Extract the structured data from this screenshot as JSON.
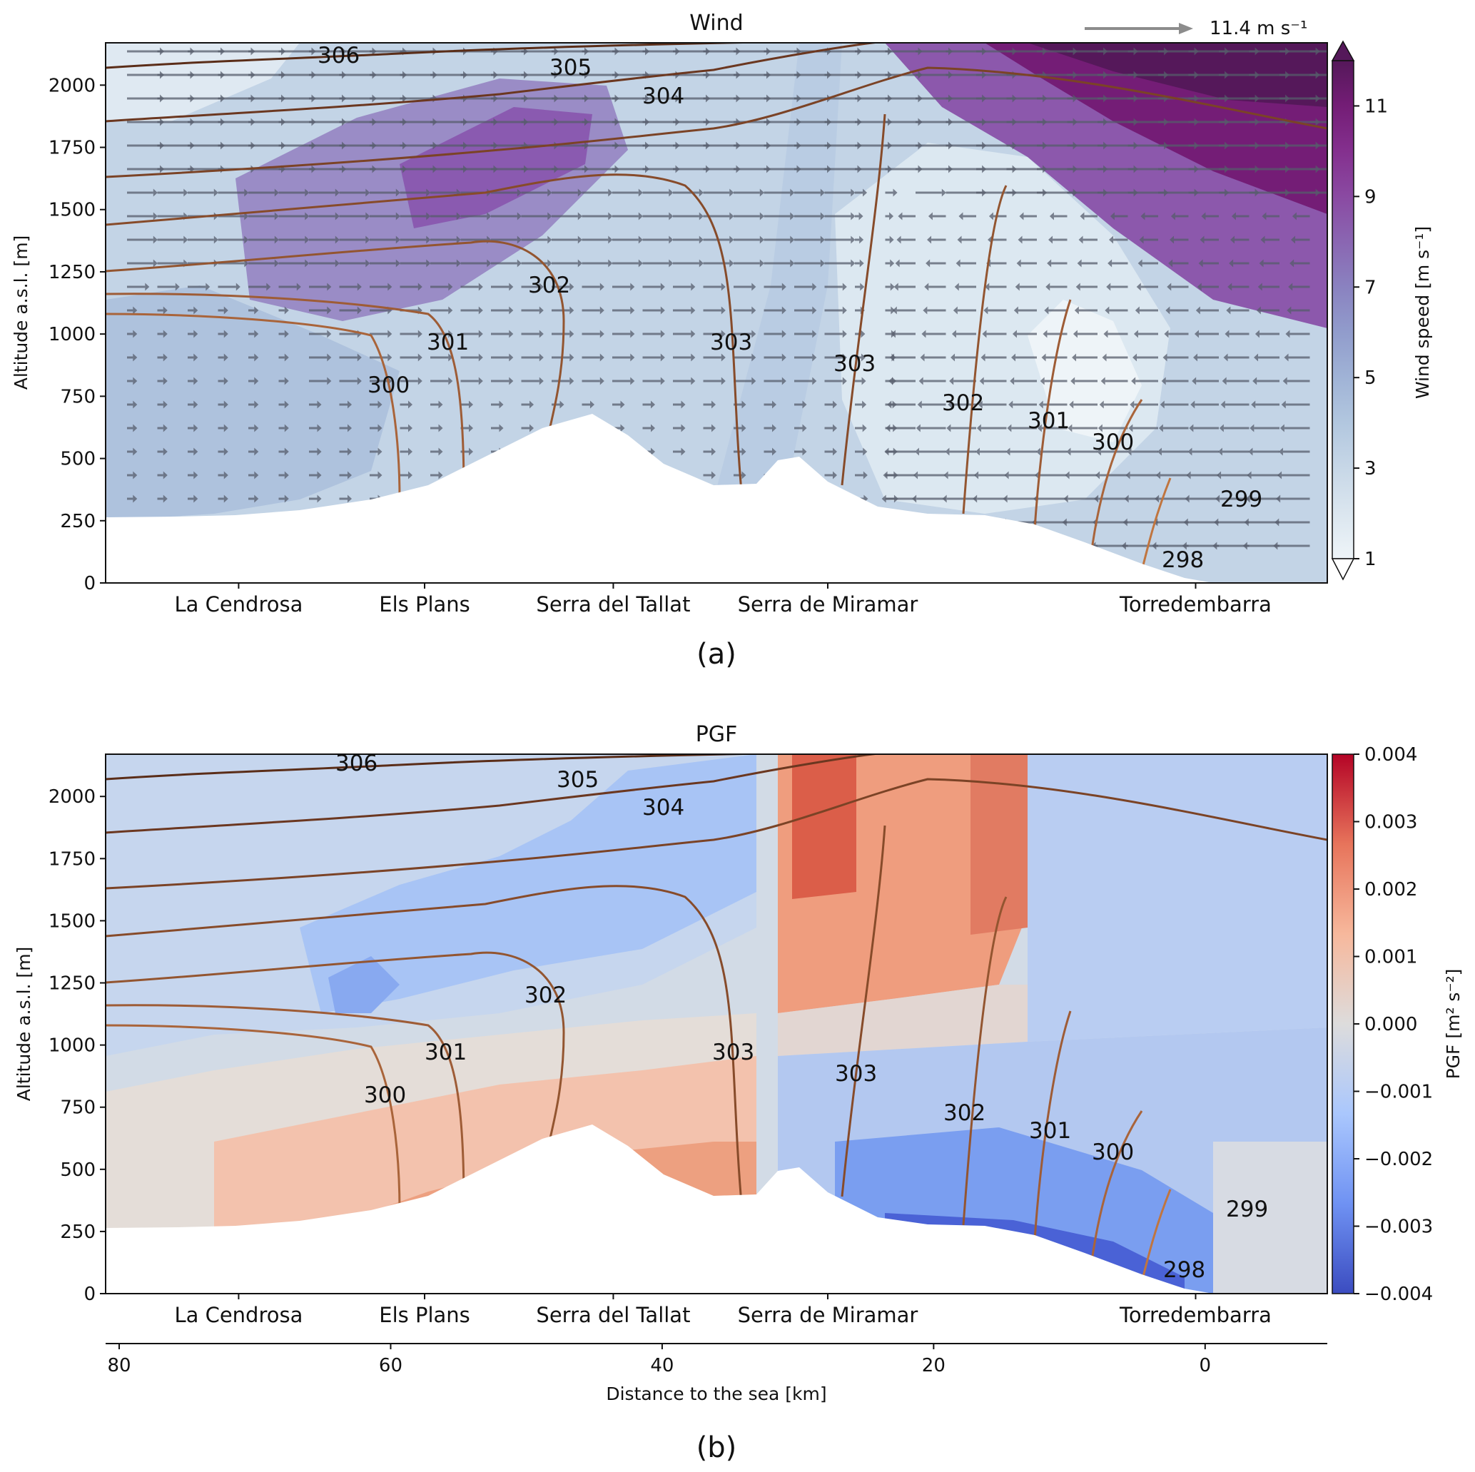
{
  "chart_data": [
    {
      "panel_label": "(a)",
      "type": "heatmap",
      "title": "Wind",
      "ylabel": "Altitude a.s.l. [m]",
      "ylim": [
        0,
        2170
      ],
      "yticks": [
        "0",
        "250",
        "500",
        "750",
        "1000",
        "1250",
        "1500",
        "1750",
        "2000"
      ],
      "xlim": [
        -9,
        81
      ],
      "location_labels": [
        {
          "name": "La Cendrosa",
          "km": 71.2
        },
        {
          "name": "Els Plans",
          "km": 57.5
        },
        {
          "name": "Serra del Tallat",
          "km": 43.6
        },
        {
          "name": "Serra de Miramar",
          "km": 27.8
        },
        {
          "name": "Torredembarra",
          "km": 0.7
        }
      ],
      "colorbar": {
        "label": "Wind speed [m s⁻¹]",
        "ticks": [
          "1",
          "3",
          "5",
          "7",
          "9",
          "11"
        ],
        "min": 1,
        "max": 12,
        "colors": [
          "#eef4f8",
          "#dbe6ef",
          "#c7d7e7",
          "#b2c7df",
          "#a0b3d6",
          "#919ccc",
          "#8a82c0",
          "#8a66b2",
          "#8a4aa2",
          "#84308e",
          "#741d76",
          "#55185a"
        ]
      },
      "reference_vector_label": "11.4 m s⁻¹",
      "contour_labels": [
        "306",
        "305",
        "304",
        "302",
        "301",
        "300",
        "303",
        "303",
        "302",
        "301",
        "300",
        "299",
        "298"
      ]
    },
    {
      "panel_label": "(b)",
      "type": "heatmap",
      "title": "PGF",
      "xlabel": "Distance to the sea [km]",
      "ylabel": "Altitude a.s.l. [m]",
      "xlim": [
        -9,
        81
      ],
      "ylim": [
        0,
        2170
      ],
      "xticks": [
        "80",
        "60",
        "40",
        "20",
        "0"
      ],
      "yticks": [
        "0",
        "250",
        "500",
        "750",
        "1000",
        "1250",
        "1500",
        "1750",
        "2000"
      ],
      "location_labels": [
        {
          "name": "La Cendrosa",
          "km": 71.2
        },
        {
          "name": "Els Plans",
          "km": 57.5
        },
        {
          "name": "Serra del Tallat",
          "km": 43.6
        },
        {
          "name": "Serra de Miramar",
          "km": 27.8
        },
        {
          "name": "Torredembarra",
          "km": 0.7
        }
      ],
      "colorbar": {
        "label": "PGF [m² s⁻²]",
        "ticks": [
          "0.004",
          "0.003",
          "0.002",
          "0.001",
          "0.000",
          "−0.001",
          "−0.002",
          "−0.003",
          "−0.004"
        ],
        "min": -0.004,
        "max": 0.004,
        "colors": [
          "#3b4cc0",
          "#6f92f3",
          "#aac7fd",
          "#dddcdc",
          "#f7b89c",
          "#e7745b",
          "#b40426"
        ]
      },
      "contour_labels": [
        "306",
        "305",
        "304",
        "302",
        "301",
        "300",
        "303",
        "303",
        "302",
        "301",
        "300",
        "299",
        "298"
      ]
    }
  ]
}
